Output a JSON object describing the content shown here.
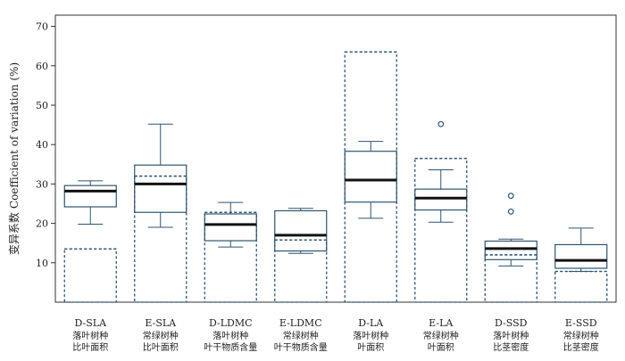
{
  "chart_data": {
    "type": "box",
    "ylabel_cn": "变异系数",
    "ylabel_en": "Coefficient of variation (%)",
    "ylim": [
      0,
      70
    ],
    "yticks": [
      10,
      20,
      30,
      40,
      50,
      60,
      70
    ],
    "grid": false,
    "colors": {
      "box": "#2f5570",
      "median": "#111111",
      "outlier": "#2f5570"
    },
    "categories": [
      {
        "code": "D-SLA",
        "sub1": "落叶树种",
        "sub2": "比叶面积",
        "solid": {
          "low": 19.8,
          "q1": 24.2,
          "median": 28.2,
          "q3": 29.6,
          "high": 30.8
        },
        "dashed": {
          "low": 0,
          "mid": 13.5,
          "high": 13.5
        },
        "outliers": []
      },
      {
        "code": "E-SLA",
        "sub1": "常绿树种",
        "sub2": "比叶面积",
        "solid": {
          "low": 19.0,
          "q1": 22.8,
          "median": 30.0,
          "q3": 34.8,
          "high": 45.2
        },
        "dashed": {
          "low": 0,
          "mid": 32.0,
          "high": 32.0
        },
        "outliers": []
      },
      {
        "code": "D-LDMC",
        "sub1": "落叶树种",
        "sub2": "叶干物质含量",
        "solid": {
          "low": 14.0,
          "q1": 15.6,
          "median": 19.7,
          "q3": 22.4,
          "high": 25.3
        },
        "dashed": {
          "low": 0,
          "mid": 22.8,
          "high": 22.8
        },
        "outliers": []
      },
      {
        "code": "E-LDMC",
        "sub1": "常绿树种",
        "sub2": "叶干物质含量",
        "solid": {
          "low": 12.4,
          "q1": 13.0,
          "median": 17.0,
          "q3": 23.2,
          "high": 23.8
        },
        "dashed": {
          "low": 0,
          "mid": 15.8,
          "high": 15.8
        },
        "outliers": []
      },
      {
        "code": "D-LA",
        "sub1": "落叶树种",
        "sub2": "叶面积",
        "solid": {
          "low": 21.3,
          "q1": 25.4,
          "median": 31.0,
          "q3": 38.3,
          "high": 40.8
        },
        "dashed": {
          "low": 0,
          "mid": 63.5,
          "high": 63.5
        },
        "outliers": []
      },
      {
        "code": "E-LA",
        "sub1": "常绿树种",
        "sub2": "叶面积",
        "solid": {
          "low": 20.3,
          "q1": 23.4,
          "median": 26.4,
          "q3": 28.7,
          "high": 33.6
        },
        "dashed": {
          "low": 0,
          "mid": 36.5,
          "high": 36.5
        },
        "outliers": [
          45.2
        ]
      },
      {
        "code": "D-SSD",
        "sub1": "落叶树种",
        "sub2": "比茎密度",
        "solid": {
          "low": 9.2,
          "q1": 10.8,
          "median": 13.6,
          "q3": 15.5,
          "high": 16.0
        },
        "dashed": {
          "low": 0,
          "mid": 12.0,
          "high": 12.0
        },
        "outliers": [
          23.0,
          27.0
        ]
      },
      {
        "code": "E-SSD",
        "sub1": "常绿树种",
        "sub2": "比茎密度",
        "solid": {
          "low": 7.8,
          "q1": 8.6,
          "median": 10.6,
          "q3": 14.6,
          "high": 18.8
        },
        "dashed": {
          "low": 0,
          "mid": 7.8,
          "high": 7.8
        },
        "outliers": []
      }
    ]
  }
}
